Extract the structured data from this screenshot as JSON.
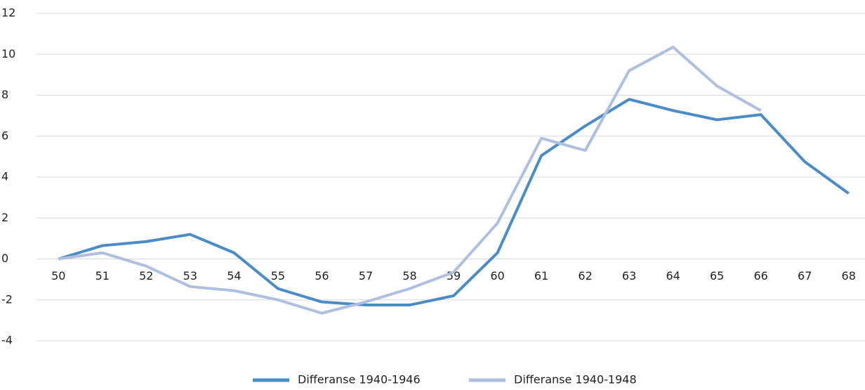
{
  "chart_data": {
    "type": "line",
    "categories": [
      "50",
      "51",
      "52",
      "53",
      "54",
      "55",
      "56",
      "57",
      "58",
      "59",
      "60",
      "61",
      "62",
      "63",
      "64",
      "65",
      "66",
      "67",
      "68"
    ],
    "series": [
      {
        "name": "Differanse 1940-1946",
        "color": "#4a8cc7",
        "values": [
          0,
          0.65,
          0.85,
          1.2,
          0.3,
          -1.45,
          -2.1,
          -2.25,
          -2.25,
          -1.8,
          0.3,
          5.05,
          6.5,
          7.8,
          7.25,
          6.8,
          7.05,
          4.75,
          3.2
        ]
      },
      {
        "name": "Differanse 1940-1948",
        "color": "#aebfe0",
        "values": [
          0,
          0.3,
          -0.35,
          -1.35,
          -1.55,
          -2.0,
          -2.65,
          -2.1,
          -1.45,
          -0.65,
          1.75,
          5.9,
          5.3,
          9.2,
          10.35,
          8.45,
          7.25,
          null,
          null
        ]
      }
    ],
    "ylim": [
      -4,
      12
    ],
    "yticks": [
      -4,
      -2,
      0,
      2,
      4,
      6,
      8,
      10,
      12
    ],
    "grid": true,
    "legend": "bottom"
  }
}
